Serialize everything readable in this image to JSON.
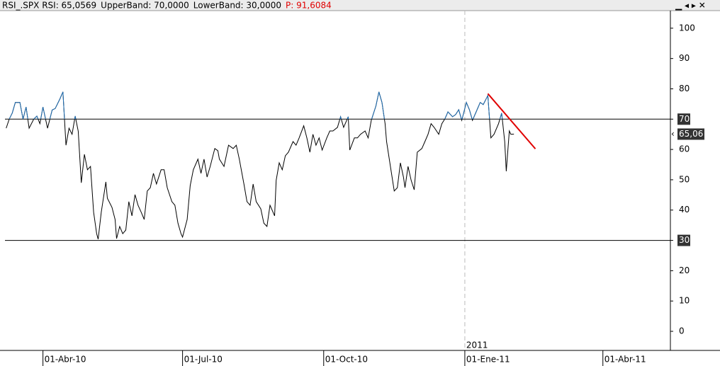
{
  "header": {
    "items": [
      "RSI_.SPX RSI: 65,0569",
      "UpperBand: 70,0000",
      "LowerBand: 30,0000",
      "P: 91,6084"
    ],
    "colors": [
      "#000000",
      "#000000",
      "#000000",
      "#e00000"
    ]
  },
  "chart_data": {
    "type": "line",
    "x": [
      "2010-03-08",
      "2010-03-10",
      "2010-03-12",
      "2010-03-14",
      "2010-03-17",
      "2010-03-19",
      "2010-03-21",
      "2010-03-23",
      "2010-03-26",
      "2010-03-28",
      "2010-03-30",
      "2010-04-01",
      "2010-04-04",
      "2010-04-07",
      "2010-04-09",
      "2010-04-12",
      "2010-04-14",
      "2010-04-16",
      "2010-04-18",
      "2010-04-20",
      "2010-04-22",
      "2010-04-24",
      "2010-04-26",
      "2010-04-28",
      "2010-04-30",
      "2010-05-02",
      "2010-05-04",
      "2010-05-06",
      "2010-05-07",
      "2010-05-09",
      "2010-05-12",
      "2010-05-13",
      "2010-05-16",
      "2010-05-18",
      "2010-05-19",
      "2010-05-21",
      "2010-05-23",
      "2010-05-25",
      "2010-05-27",
      "2010-05-29",
      "2010-05-31",
      "2010-06-02",
      "2010-06-04",
      "2010-06-06",
      "2010-06-08",
      "2010-06-10",
      "2010-06-12",
      "2010-06-14",
      "2010-06-17",
      "2010-06-19",
      "2010-06-21",
      "2010-06-24",
      "2010-06-26",
      "2010-06-28",
      "2010-06-30",
      "2010-07-01",
      "2010-07-04",
      "2010-07-06",
      "2010-07-08",
      "2010-07-11",
      "2010-07-13",
      "2010-07-15",
      "2010-07-17",
      "2010-07-19",
      "2010-07-22",
      "2010-07-24",
      "2010-07-25",
      "2010-07-28",
      "2010-07-30",
      "2010-07-31",
      "2010-08-03",
      "2010-08-05",
      "2010-08-07",
      "2010-08-10",
      "2010-08-12",
      "2010-08-14",
      "2010-08-16",
      "2010-08-18",
      "2010-08-21",
      "2010-08-23",
      "2010-08-25",
      "2010-08-27",
      "2010-08-30",
      "2010-08-31",
      "2010-09-02",
      "2010-09-04",
      "2010-09-06",
      "2010-09-08",
      "2010-09-11",
      "2010-09-13",
      "2010-09-15",
      "2010-09-18",
      "2010-09-20",
      "2010-09-22",
      "2010-09-24",
      "2010-09-26",
      "2010-09-28",
      "2010-09-30",
      "2010-10-03",
      "2010-10-05",
      "2010-10-07",
      "2010-10-10",
      "2010-10-12",
      "2010-10-14",
      "2010-10-17",
      "2010-10-18",
      "2010-10-21",
      "2010-10-23",
      "2010-10-25",
      "2010-10-28",
      "2010-10-30",
      "2010-11-01",
      "2010-11-04",
      "2010-11-06",
      "2010-11-08",
      "2010-11-10",
      "2010-11-11",
      "2010-11-13",
      "2010-11-16",
      "2010-11-18",
      "2010-11-20",
      "2010-11-22",
      "2010-11-23",
      "2010-11-25",
      "2010-11-27",
      "2010-11-29",
      "2010-12-01",
      "2010-12-04",
      "2010-12-06",
      "2010-12-08",
      "2010-12-10",
      "2010-12-12",
      "2010-12-15",
      "2010-12-17",
      "2010-12-19",
      "2010-12-21",
      "2010-12-24",
      "2010-12-26",
      "2010-12-28",
      "2010-12-30",
      "2011-01-02",
      "2011-01-04",
      "2011-01-06",
      "2011-01-09",
      "2011-01-11",
      "2011-01-13",
      "2011-01-16",
      "2011-01-18",
      "2011-01-20",
      "2011-01-23",
      "2011-01-25",
      "2011-01-27",
      "2011-01-28",
      "2011-01-30",
      "2011-01-31",
      "2011-02-02"
    ],
    "series": [
      {
        "name": "RSI",
        "color": "#000000",
        "above_color": "#1f6fb5",
        "below_color": "#e00000",
        "values": [
          67,
          70,
          72,
          75.5,
          75.5,
          70,
          74,
          67,
          70,
          71,
          68.5,
          74,
          67,
          73,
          73.5,
          76.6,
          79,
          61.4,
          67,
          65,
          71,
          66,
          49,
          58.4,
          53.3,
          54.4,
          39.3,
          32.2,
          30.4,
          39.3,
          49.3,
          43.9,
          40.9,
          36.9,
          30.6,
          34.6,
          32.2,
          33.4,
          42.8,
          38.1,
          45.1,
          41.6,
          39.3,
          36.9,
          46.3,
          47.4,
          52.1,
          48.6,
          53.3,
          53.3,
          47.4,
          42.8,
          41.6,
          35.7,
          32.2,
          31.1,
          36.9,
          48.1,
          53.3,
          56.8,
          52.1,
          56.8,
          50.9,
          54.4,
          60.3,
          59.6,
          56.8,
          54.4,
          59.1,
          61.4,
          60.3,
          61.4,
          56.8,
          48.6,
          42.8,
          41.6,
          48.6,
          42.8,
          40.4,
          35.7,
          34.6,
          41.6,
          38.1,
          49.8,
          55.6,
          53.3,
          57.9,
          59.1,
          62.6,
          61.4,
          63.8,
          67.8,
          63.8,
          59.1,
          65,
          61.4,
          63.8,
          59.8,
          63.8,
          66.1,
          66.1,
          67.3,
          70.8,
          67.3,
          70.8,
          59.8,
          63.8,
          63.8,
          65,
          66.1,
          63.8,
          69.6,
          74.3,
          79,
          75.5,
          68.5,
          62.6,
          56.1,
          46.3,
          47.4,
          55.6,
          50.9,
          47.4,
          54.4,
          49.8,
          46.7,
          59.1,
          60.3,
          62.6,
          65,
          68.5,
          67.3,
          65,
          68.5,
          70.1,
          72.4,
          70.8,
          71.5,
          73.1,
          69.6,
          75.5,
          73.1,
          69.6,
          73.1,
          75.5,
          74.8,
          77.8,
          63.8,
          65,
          68.5,
          72,
          62.6,
          52.8,
          66.1,
          65,
          65.06
        ]
      }
    ],
    "trendline": {
      "x": [
        "2011-01-16",
        "2011-02-16"
      ],
      "values": [
        78.4,
        60.2
      ],
      "color": "#e00000"
    },
    "bands": [
      70,
      30
    ],
    "last_marker": {
      "value": 65.06,
      "label": "65,06"
    },
    "year_marker": {
      "value": "2011-01-01",
      "label": "2011"
    },
    "xlim": [
      "2010-03-04",
      "2011-05-15"
    ],
    "xticks": [
      {
        "value": "2010-04-01",
        "label": "01-Abr-10"
      },
      {
        "value": "2010-07-01",
        "label": "01-Jul-10"
      },
      {
        "value": "2010-10-01",
        "label": "01-Oct-10"
      },
      {
        "value": "2011-01-01",
        "label": "01-Ene-11"
      },
      {
        "value": "2011-04-01",
        "label": "01-Abr-11"
      }
    ],
    "ylim": [
      -6.3,
      105.8
    ],
    "yticks": [
      0,
      10,
      20,
      30,
      40,
      50,
      60,
      70,
      80,
      90,
      100
    ]
  }
}
